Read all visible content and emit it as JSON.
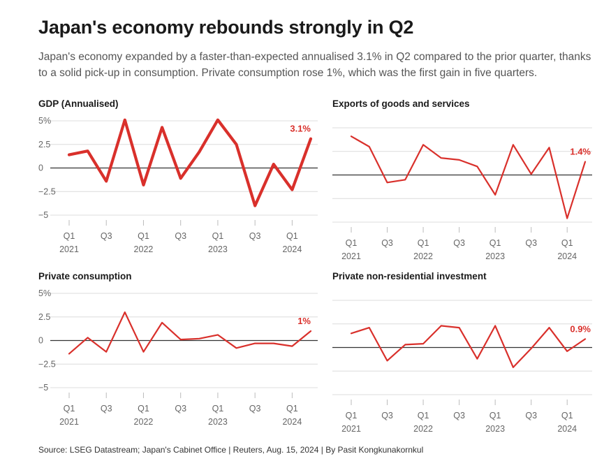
{
  "title": "Japan's economy rebounds strongly in Q2",
  "subtitle": "Japan's economy expanded by a faster-than-expected annualised 3.1% in Q2 compared to the prior quarter, thanks to a solid pick-up in consumption. Private consumption rose 1%, which was the first gain in five quarters.",
  "source": "Source: LSEG Datastream; Japan's Cabinet Office | Reuters, Aug. 15, 2024 | By Pasit Kongkunakornkul",
  "colors": {
    "line": "#d9302b"
  },
  "chart_data": [
    {
      "type": "line",
      "title": "GDP (Annualised)",
      "categories": [
        "Q1 2021",
        "Q2 2021",
        "Q3 2021",
        "Q4 2021",
        "Q1 2022",
        "Q2 2022",
        "Q3 2022",
        "Q4 2022",
        "Q1 2023",
        "Q2 2023",
        "Q3 2023",
        "Q4 2023",
        "Q1 2024",
        "Q2 2024"
      ],
      "x_tick_labels": [
        "Q1",
        "Q3",
        "Q1",
        "Q3",
        "Q1",
        "Q3",
        "Q1"
      ],
      "x_year_labels": [
        "2021",
        "2022",
        "2023",
        "2024"
      ],
      "y_tick_labels": [
        "5%",
        "2.5",
        "0",
        "−2.5",
        "−5"
      ],
      "ylim": [
        -5,
        5
      ],
      "values": [
        1.4,
        1.8,
        -1.4,
        5.1,
        -1.8,
        4.3,
        -1.1,
        1.7,
        5.1,
        2.5,
        -4.0,
        0.4,
        -2.3,
        3.1
      ],
      "end_label": "3.1%"
    },
    {
      "type": "line",
      "title": "Exports of goods and services",
      "categories": [
        "Q1 2021",
        "Q2 2021",
        "Q3 2021",
        "Q4 2021",
        "Q1 2022",
        "Q2 2022",
        "Q3 2022",
        "Q4 2022",
        "Q1 2023",
        "Q2 2023",
        "Q3 2023",
        "Q4 2023",
        "Q1 2024",
        "Q2 2024"
      ],
      "x_tick_labels": [
        "Q1",
        "Q3",
        "Q1",
        "Q3",
        "Q1",
        "Q3",
        "Q1"
      ],
      "x_year_labels": [
        "2021",
        "2022",
        "2023",
        "2024"
      ],
      "y_tick_labels": [],
      "ylim": [
        -5,
        5
      ],
      "values": [
        4.1,
        3.0,
        -0.8,
        -0.5,
        3.2,
        1.8,
        1.6,
        0.9,
        -2.1,
        3.2,
        0.1,
        2.9,
        -4.6,
        1.4
      ],
      "end_label": "1.4%"
    },
    {
      "type": "line",
      "title": "Private consumption",
      "categories": [
        "Q1 2021",
        "Q2 2021",
        "Q3 2021",
        "Q4 2021",
        "Q1 2022",
        "Q2 2022",
        "Q3 2022",
        "Q4 2022",
        "Q1 2023",
        "Q2 2023",
        "Q3 2023",
        "Q4 2023",
        "Q1 2024",
        "Q2 2024"
      ],
      "x_tick_labels": [
        "Q1",
        "Q3",
        "Q1",
        "Q3",
        "Q1",
        "Q3",
        "Q1"
      ],
      "x_year_labels": [
        "2021",
        "2022",
        "2023",
        "2024"
      ],
      "y_tick_labels": [
        "5%",
        "2.5",
        "0",
        "−2.5",
        "−5"
      ],
      "ylim": [
        -5,
        5
      ],
      "values": [
        -1.4,
        0.3,
        -1.2,
        3.0,
        -1.2,
        1.9,
        0.1,
        0.2,
        0.6,
        -0.8,
        -0.3,
        -0.3,
        -0.6,
        1.0
      ],
      "end_label": "1%"
    },
    {
      "type": "line",
      "title": "Private non-residential investment",
      "categories": [
        "Q1 2021",
        "Q2 2021",
        "Q3 2021",
        "Q4 2021",
        "Q1 2022",
        "Q2 2022",
        "Q3 2022",
        "Q4 2022",
        "Q1 2023",
        "Q2 2023",
        "Q3 2023",
        "Q4 2023",
        "Q1 2024",
        "Q2 2024"
      ],
      "x_tick_labels": [
        "Q1",
        "Q3",
        "Q1",
        "Q3",
        "Q1",
        "Q3",
        "Q1"
      ],
      "x_year_labels": [
        "2021",
        "2022",
        "2023",
        "2024"
      ],
      "y_tick_labels": [],
      "ylim": [
        -5,
        5
      ],
      "values": [
        1.5,
        2.1,
        -1.4,
        0.3,
        0.4,
        2.3,
        2.1,
        -1.2,
        2.3,
        -2.1,
        -0.1,
        2.1,
        -0.4,
        0.9
      ],
      "end_label": "0.9%"
    }
  ]
}
